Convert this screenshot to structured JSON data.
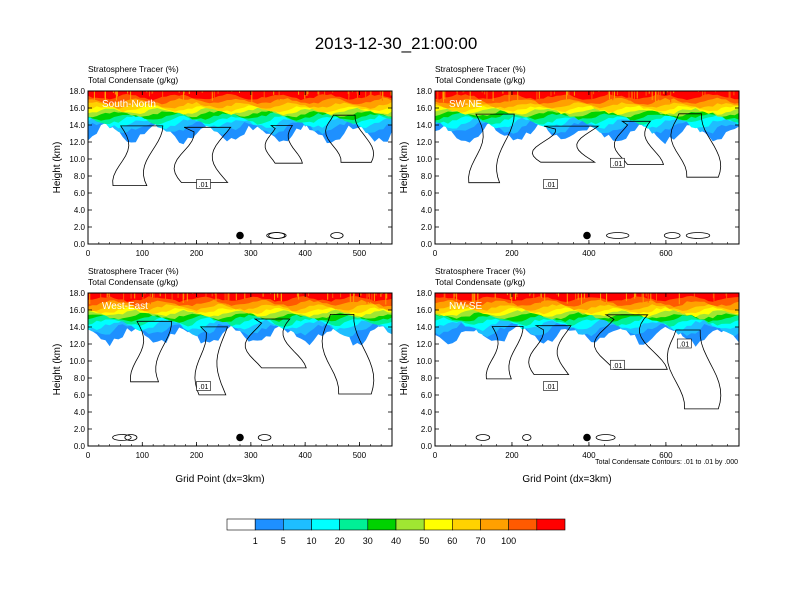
{
  "title": "2013-12-30_21:00:00",
  "colors": {
    "scale": [
      "#ffffff",
      "#1e90ff",
      "#1ebeff",
      "#00ffff",
      "#00f096",
      "#00d200",
      "#a0e632",
      "#ffff00",
      "#ffd200",
      "#ffa000",
      "#ff5a00",
      "#ff0000"
    ],
    "contour_line": "#000000"
  },
  "colorbar_labels": [
    "1",
    "5",
    "10",
    "20",
    "30",
    "40",
    "50",
    "60",
    "70",
    "100"
  ],
  "footnote": "Total Condensate Contours: .01 to .01 by .000",
  "chart_data": [
    {
      "type": "heatmap",
      "label_line1": "Stratosphere Tracer   (%)",
      "label_line2": "Total Condensate   (g/kg)",
      "cross_section": "South-North",
      "ylabel": "Height (km)",
      "xlabel": "",
      "xlim": [
        0,
        560
      ],
      "ylim": [
        0,
        18
      ],
      "xticks": [
        "0",
        "100",
        "200",
        "300",
        "400",
        "500"
      ],
      "yticks": [
        "0.0",
        "2.0",
        "4.0",
        "6.0",
        "8.0",
        "10.0",
        "12.0",
        "14.0",
        "16.0",
        "18.0"
      ],
      "marker_x": 280,
      "contour_labels": [
        ".01"
      ]
    },
    {
      "type": "heatmap",
      "label_line1": "Stratosphere Tracer   (%)",
      "label_line2": "Total Condensate   (g/kg)",
      "cross_section": "SW-NE",
      "ylabel": "Height (km)",
      "xlabel": "",
      "xlim": [
        0,
        790
      ],
      "ylim": [
        0,
        18
      ],
      "xticks": [
        "0",
        "200",
        "400",
        "600"
      ],
      "yticks": [
        "0.0",
        "2.0",
        "4.0",
        "6.0",
        "8.0",
        "10.0",
        "12.0",
        "14.0",
        "16.0",
        "18.0"
      ],
      "marker_x": 395,
      "contour_labels": [
        ".01",
        ".01"
      ]
    },
    {
      "type": "heatmap",
      "label_line1": "Stratosphere Tracer   (%)",
      "label_line2": "Total Condensate   (g/kg)",
      "cross_section": "West-East",
      "ylabel": "Height (km)",
      "xlabel": "Grid Point (dx=3km)",
      "xlim": [
        0,
        560
      ],
      "ylim": [
        0,
        18
      ],
      "xticks": [
        "0",
        "100",
        "200",
        "300",
        "400",
        "500"
      ],
      "yticks": [
        "0.0",
        "2.0",
        "4.0",
        "6.0",
        "8.0",
        "10.0",
        "12.0",
        "14.0",
        "16.0",
        "18.0"
      ],
      "marker_x": 280,
      "contour_labels": [
        ".01"
      ]
    },
    {
      "type": "heatmap",
      "label_line1": "Stratosphere Tracer   (%)",
      "label_line2": "Total Condensate   (g/kg)",
      "cross_section": "NW-SE",
      "ylabel": "Height (km)",
      "xlabel": "Grid Point (dx=3km)",
      "xlim": [
        0,
        790
      ],
      "ylim": [
        0,
        18
      ],
      "xticks": [
        "0",
        "200",
        "400",
        "600"
      ],
      "yticks": [
        "0.0",
        "2.0",
        "4.0",
        "6.0",
        "8.0",
        "10.0",
        "12.0",
        "14.0",
        "16.0",
        "18.0"
      ],
      "marker_x": 395,
      "contour_labels": [
        ".01",
        ".01",
        ".01"
      ]
    }
  ]
}
